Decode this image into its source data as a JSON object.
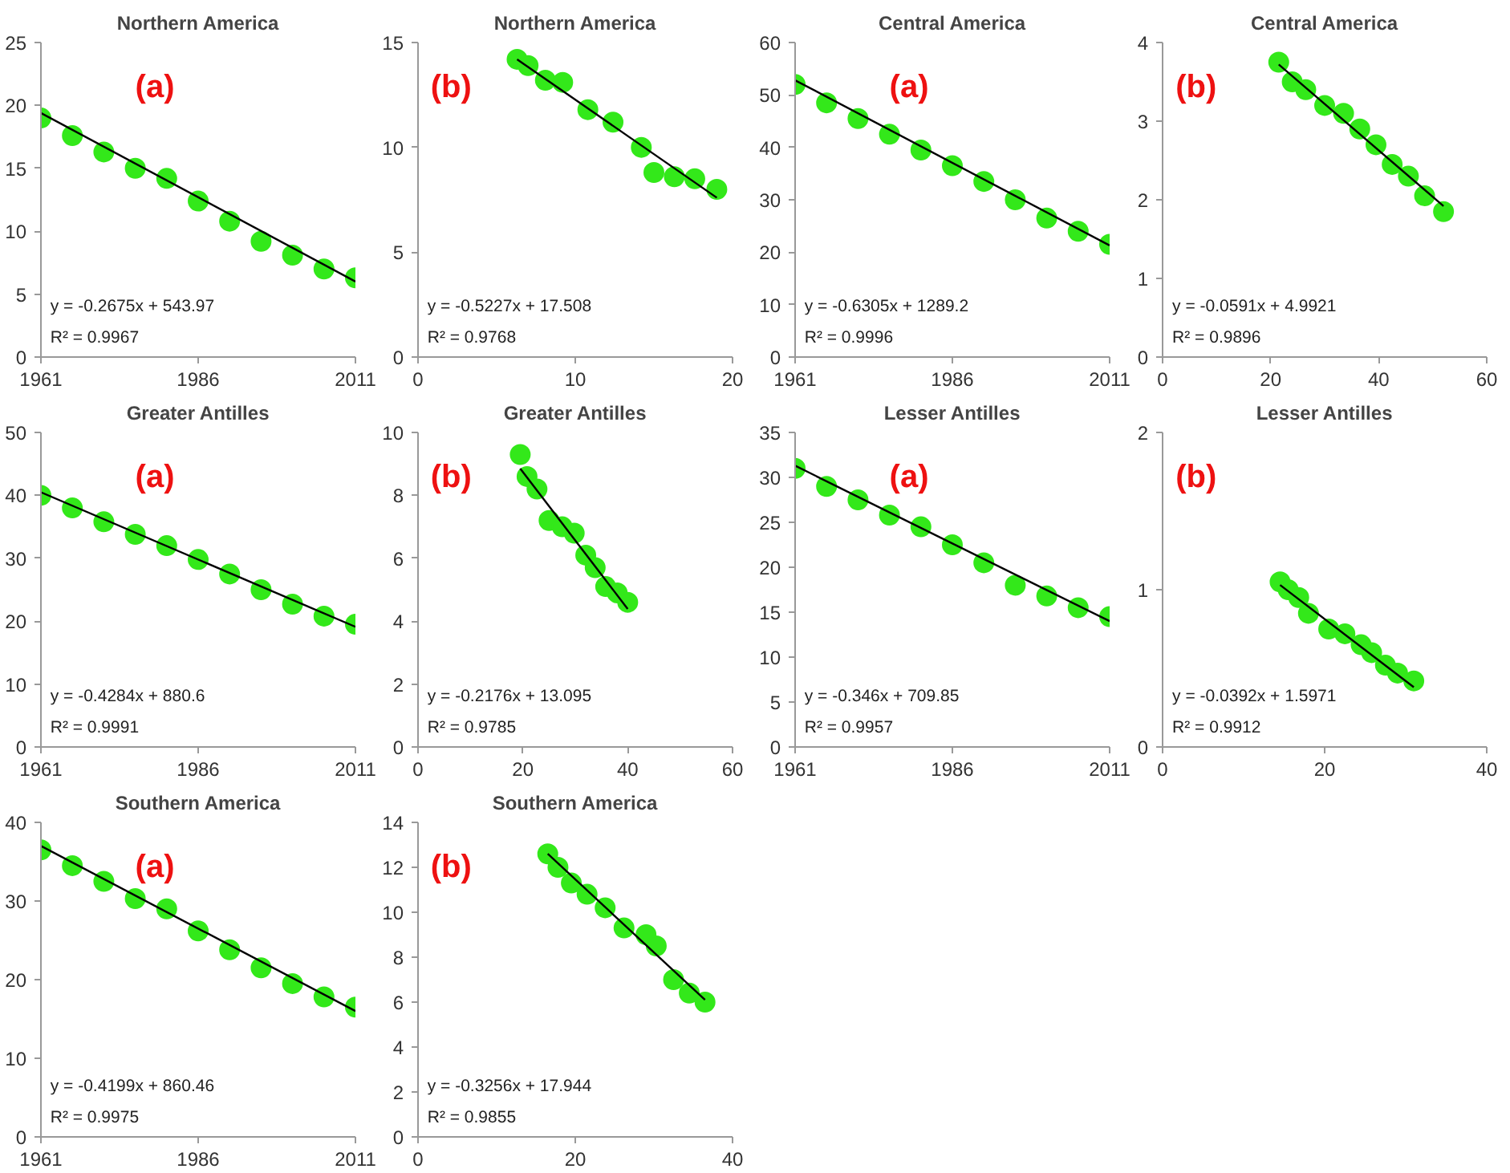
{
  "chart_data": [
    {
      "type": "scatter",
      "title": "Northern America",
      "subtitle": "(a)",
      "annotations": [
        "y = -0.2675x + 543.97",
        "R² = 0.9967"
      ],
      "x": [
        1961,
        1966,
        1971,
        1976,
        1981,
        1986,
        1991,
        1996,
        2001,
        2006,
        2011
      ],
      "xlim": [
        1961,
        2011
      ],
      "xticks": [
        1961,
        1986,
        2011
      ],
      "ylim": [
        0,
        25
      ],
      "yticks": [
        0,
        5,
        10,
        15,
        20,
        25
      ],
      "grid": false,
      "series": [
        {
          "marker": "circle",
          "color": "#33e81a",
          "values": [
            19.0,
            17.6,
            16.3,
            15.0,
            14.2,
            12.4,
            10.8,
            9.2,
            8.1,
            7.0,
            6.3
          ]
        },
        {
          "type": "line",
          "color": "#000000",
          "x": [
            1961,
            2011
          ],
          "values": [
            19.4,
            6.0
          ]
        }
      ]
    },
    {
      "type": "scatter",
      "title": "Northern America",
      "subtitle": "(b)",
      "annotations": [
        "y = -0.5227x + 17.508",
        "R² = 0.9768"
      ],
      "x": [
        6.3,
        7.0,
        8.1,
        9.2,
        10.8,
        12.4,
        14.2,
        15.0,
        16.3,
        17.6,
        19.0
      ],
      "xlim": [
        0,
        20
      ],
      "xticks": [
        0,
        10,
        20
      ],
      "ylim": [
        0,
        15
      ],
      "yticks": [
        0,
        5,
        10,
        15
      ],
      "grid": false,
      "series": [
        {
          "marker": "circle",
          "color": "#33e81a",
          "values": [
            14.2,
            13.9,
            13.2,
            13.1,
            11.8,
            11.2,
            10.0,
            8.8,
            8.6,
            8.5,
            8.0
          ]
        },
        {
          "type": "line",
          "color": "#000000",
          "x": [
            6.3,
            19.0
          ],
          "values": [
            14.2,
            7.6
          ]
        }
      ]
    },
    {
      "type": "scatter",
      "title": "Central America",
      "subtitle": "(a)",
      "annotations": [
        "y = -0.6305x + 1289.2",
        "R² = 0.9996"
      ],
      "x": [
        1961,
        1966,
        1971,
        1976,
        1981,
        1986,
        1991,
        1996,
        2001,
        2006,
        2011
      ],
      "xlim": [
        1961,
        2011
      ],
      "xticks": [
        1961,
        1986,
        2011
      ],
      "ylim": [
        0,
        60
      ],
      "yticks": [
        0,
        10,
        20,
        30,
        40,
        50,
        60
      ],
      "grid": false,
      "series": [
        {
          "marker": "circle",
          "color": "#33e81a",
          "values": [
            52,
            48.5,
            45.5,
            42.5,
            39.5,
            36.5,
            33.5,
            30,
            26.5,
            24,
            21.5
          ]
        },
        {
          "type": "line",
          "color": "#000000",
          "x": [
            1961,
            2011
          ],
          "values": [
            52.8,
            21.3
          ]
        }
      ]
    },
    {
      "type": "scatter",
      "title": "Central America",
      "subtitle": "(b)",
      "annotations": [
        "y = -0.0591x + 4.9921",
        "R² = 0.9896"
      ],
      "x": [
        21.5,
        24,
        26.5,
        30,
        33.5,
        36.5,
        39.5,
        42.5,
        45.5,
        48.5,
        52
      ],
      "xlim": [
        0,
        60
      ],
      "xticks": [
        0,
        20,
        40,
        60
      ],
      "ylim": [
        0,
        4
      ],
      "yticks": [
        0,
        1,
        2,
        3,
        4
      ],
      "grid": false,
      "series": [
        {
          "marker": "circle",
          "color": "#33e81a",
          "values": [
            3.75,
            3.5,
            3.4,
            3.2,
            3.1,
            2.9,
            2.7,
            2.45,
            2.3,
            2.05,
            1.85
          ]
        },
        {
          "type": "line",
          "color": "#000000",
          "x": [
            21.5,
            52
          ],
          "values": [
            3.72,
            1.92
          ]
        }
      ]
    },
    {
      "type": "scatter",
      "title": "Greater Antilles",
      "subtitle": "(a)",
      "annotations": [
        "y = -0.4284x + 880.6",
        "R² = 0.9991"
      ],
      "x": [
        1961,
        1966,
        1971,
        1976,
        1981,
        1986,
        1991,
        1996,
        2001,
        2006,
        2011
      ],
      "xlim": [
        1961,
        2011
      ],
      "xticks": [
        1961,
        1986,
        2011
      ],
      "ylim": [
        0,
        50
      ],
      "yticks": [
        0,
        10,
        20,
        30,
        40,
        50
      ],
      "grid": false,
      "series": [
        {
          "marker": "circle",
          "color": "#33e81a",
          "values": [
            40,
            38,
            35.8,
            33.8,
            32,
            29.8,
            27.5,
            25,
            22.7,
            20.8,
            19.5
          ]
        },
        {
          "type": "line",
          "color": "#000000",
          "x": [
            1961,
            2011
          ],
          "values": [
            40.5,
            19.1
          ]
        }
      ]
    },
    {
      "type": "scatter",
      "title": "Greater Antilles",
      "subtitle": "(b)",
      "annotations": [
        "y = -0.2176x + 13.095",
        "R² = 0.9785"
      ],
      "x": [
        19.5,
        20.8,
        22.7,
        25,
        27.5,
        29.8,
        32,
        33.8,
        35.8,
        38,
        40
      ],
      "xlim": [
        0,
        60
      ],
      "xticks": [
        0,
        20,
        40,
        60
      ],
      "ylim": [
        0,
        10
      ],
      "yticks": [
        0,
        2,
        4,
        6,
        8,
        10
      ],
      "grid": false,
      "series": [
        {
          "marker": "circle",
          "color": "#33e81a",
          "values": [
            9.3,
            8.6,
            8.2,
            7.2,
            7.0,
            6.8,
            6.1,
            5.7,
            5.1,
            4.9,
            4.6
          ]
        },
        {
          "type": "line",
          "color": "#000000",
          "x": [
            19.5,
            40
          ],
          "values": [
            8.85,
            4.39
          ]
        }
      ]
    },
    {
      "type": "scatter",
      "title": "Lesser Antilles",
      "subtitle": "(a)",
      "annotations": [
        "y = -0.346x + 709.85",
        "R² = 0.9957"
      ],
      "x": [
        1961,
        1966,
        1971,
        1976,
        1981,
        1986,
        1991,
        1996,
        2001,
        2006,
        2011
      ],
      "xlim": [
        1961,
        2011
      ],
      "xticks": [
        1961,
        1986,
        2011
      ],
      "ylim": [
        0,
        35
      ],
      "yticks": [
        0,
        5,
        10,
        15,
        20,
        25,
        30,
        35
      ],
      "grid": false,
      "series": [
        {
          "marker": "circle",
          "color": "#33e81a",
          "values": [
            31,
            29,
            27.5,
            25.8,
            24.5,
            22.5,
            20.5,
            18,
            16.8,
            15.5,
            14.5
          ]
        },
        {
          "type": "line",
          "color": "#000000",
          "x": [
            1961,
            2011
          ],
          "values": [
            31.3,
            14.0
          ]
        }
      ]
    },
    {
      "type": "scatter",
      "title": "Lesser Antilles",
      "subtitle": "(b)",
      "annotations": [
        "y = -0.0392x + 1.5971",
        "R² = 0.9912"
      ],
      "x": [
        14.5,
        15.5,
        16.8,
        18,
        20.5,
        22.5,
        24.5,
        25.8,
        27.5,
        29,
        31
      ],
      "xlim": [
        0,
        40
      ],
      "xticks": [
        0,
        20,
        40
      ],
      "ylim": [
        0,
        2
      ],
      "yticks": [
        0,
        1,
        2
      ],
      "grid": false,
      "series": [
        {
          "marker": "circle",
          "color": "#33e81a",
          "values": [
            1.05,
            1.0,
            0.95,
            0.85,
            0.75,
            0.72,
            0.65,
            0.6,
            0.52,
            0.47,
            0.42
          ]
        },
        {
          "type": "line",
          "color": "#000000",
          "x": [
            14.5,
            31
          ],
          "values": [
            1.03,
            0.38
          ]
        }
      ]
    },
    {
      "type": "scatter",
      "title": "Southern America",
      "subtitle": "(a)",
      "annotations": [
        "y = -0.4199x + 860.46",
        "R² = 0.9975"
      ],
      "x": [
        1961,
        1966,
        1971,
        1976,
        1981,
        1986,
        1991,
        1996,
        2001,
        2006,
        2011
      ],
      "xlim": [
        1961,
        2011
      ],
      "xticks": [
        1961,
        1986,
        2011
      ],
      "ylim": [
        0,
        40
      ],
      "yticks": [
        0,
        10,
        20,
        30,
        40
      ],
      "grid": false,
      "series": [
        {
          "marker": "circle",
          "color": "#33e81a",
          "values": [
            36.5,
            34.5,
            32.5,
            30.3,
            29,
            26.2,
            23.8,
            21.5,
            19.5,
            17.8,
            16.5
          ]
        },
        {
          "type": "line",
          "color": "#000000",
          "x": [
            1961,
            2011
          ],
          "values": [
            37.0,
            16.0
          ]
        }
      ]
    },
    {
      "type": "scatter",
      "title": "Southern America",
      "subtitle": "(b)",
      "annotations": [
        "y = -0.3256x + 17.944",
        "R² = 0.9855"
      ],
      "x": [
        16.5,
        17.8,
        19.5,
        21.5,
        23.8,
        26.2,
        29,
        30.3,
        32.5,
        34.5,
        36.5
      ],
      "xlim": [
        0,
        40
      ],
      "xticks": [
        0,
        20,
        40
      ],
      "ylim": [
        0,
        14
      ],
      "yticks": [
        0,
        2,
        4,
        6,
        8,
        10,
        12,
        14
      ],
      "grid": false,
      "series": [
        {
          "marker": "circle",
          "color": "#33e81a",
          "values": [
            12.6,
            12.0,
            11.3,
            10.8,
            10.2,
            9.3,
            9.0,
            8.5,
            7.0,
            6.4,
            6.0
          ]
        },
        {
          "type": "line",
          "color": "#000000",
          "x": [
            16.5,
            36.5
          ],
          "values": [
            12.6,
            6.1
          ]
        }
      ]
    }
  ]
}
